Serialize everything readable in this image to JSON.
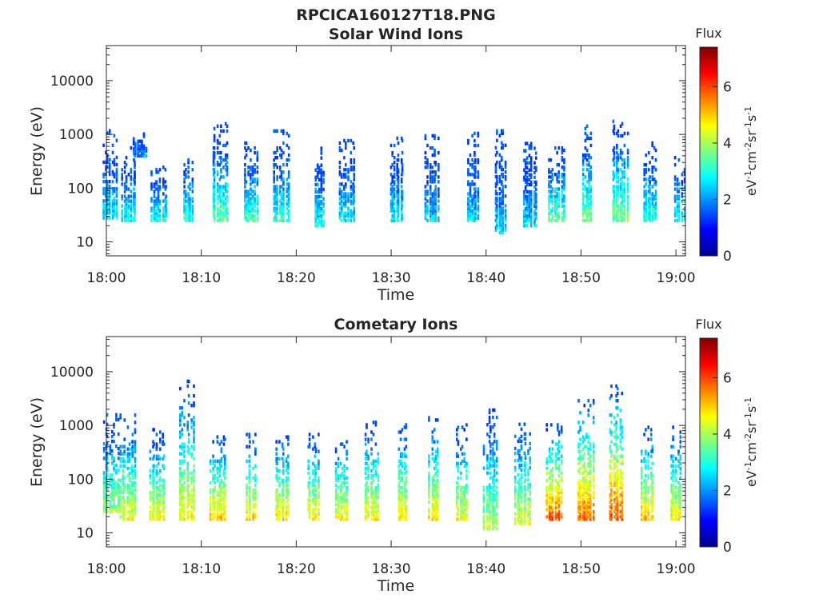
{
  "figure_title": "RPCICA160127T18.PNG",
  "chart_data": [
    {
      "type": "heatmap",
      "title": "Solar Wind Ions",
      "xlabel": "Time",
      "ylabel": "Energy (eV)",
      "x_ticks": [
        "18:00",
        "18:10",
        "18:20",
        "18:30",
        "18:40",
        "18:50",
        "19:00"
      ],
      "xlim": [
        "18:00",
        "19:01"
      ],
      "y_scale": "log",
      "ylim": [
        5.5,
        45000
      ],
      "y_ticks": [
        10,
        100,
        1000,
        10000
      ],
      "y_tick_labels": [
        "10",
        "100",
        "1000",
        "10000"
      ],
      "colorbar": {
        "label": "Flux",
        "units": "eV-1cm-2sr-1s-1",
        "range": [
          0,
          7.4
        ],
        "ticks": [
          0,
          2,
          4,
          6
        ]
      },
      "bursts": [
        {
          "t": "18:00.4",
          "e_low": 28,
          "e_high": 1200,
          "peak_flux": 3.2
        },
        {
          "t": "18:02.4",
          "e_low": 25,
          "e_high": 600,
          "peak_flux": 3.4
        },
        {
          "t": "18:03.5",
          "e_low": 400,
          "e_high": 1100,
          "peak_flux": 2.3
        },
        {
          "t": "18:05.6",
          "e_low": 25,
          "e_high": 300,
          "peak_flux": 3.4
        },
        {
          "t": "18:08.6",
          "e_low": 25,
          "e_high": 400,
          "peak_flux": 3.6
        },
        {
          "t": "18:12.0",
          "e_low": 25,
          "e_high": 1600,
          "peak_flux": 4.0
        },
        {
          "t": "18:15.2",
          "e_low": 25,
          "e_high": 700,
          "peak_flux": 3.8
        },
        {
          "t": "18:18.4",
          "e_low": 25,
          "e_high": 1300,
          "peak_flux": 3.6
        },
        {
          "t": "18:22.5",
          "e_low": 20,
          "e_high": 700,
          "peak_flux": 3.4
        },
        {
          "t": "18:25.4",
          "e_low": 25,
          "e_high": 800,
          "peak_flux": 3.2
        },
        {
          "t": "18:30.6",
          "e_low": 25,
          "e_high": 900,
          "peak_flux": 3.2
        },
        {
          "t": "18:34.3",
          "e_low": 25,
          "e_high": 1000,
          "peak_flux": 3.0
        },
        {
          "t": "18:38.6",
          "e_low": 25,
          "e_high": 1100,
          "peak_flux": 3.0
        },
        {
          "t": "18:41.5",
          "e_low": 15,
          "e_high": 1200,
          "peak_flux": 3.0
        },
        {
          "t": "18:44.6",
          "e_low": 20,
          "e_high": 1100,
          "peak_flux": 3.0
        },
        {
          "t": "18:47.4",
          "e_low": 25,
          "e_high": 600,
          "peak_flux": 4.0
        },
        {
          "t": "18:50.6",
          "e_low": 25,
          "e_high": 1500,
          "peak_flux": 4.2
        },
        {
          "t": "18:54.1",
          "e_low": 25,
          "e_high": 1900,
          "peak_flux": 4.2
        },
        {
          "t": "18:57.3",
          "e_low": 25,
          "e_high": 700,
          "peak_flux": 3.6
        },
        {
          "t": "19:00.4",
          "e_low": 25,
          "e_high": 500,
          "peak_flux": 3.4
        }
      ]
    },
    {
      "type": "heatmap",
      "title": "Cometary Ions",
      "xlabel": "Time",
      "ylabel": "Energy (eV)",
      "x_ticks": [
        "18:00",
        "18:10",
        "18:20",
        "18:30",
        "18:40",
        "18:50",
        "19:00"
      ],
      "xlim": [
        "18:00",
        "19:01"
      ],
      "y_scale": "log",
      "ylim": [
        5.5,
        45000
      ],
      "y_ticks": [
        10,
        100,
        1000,
        10000
      ],
      "y_tick_labels": [
        "10",
        "100",
        "1000",
        "10000"
      ],
      "colorbar": {
        "label": "Flux",
        "units": "eV-1cm-2sr-1s-1",
        "range": [
          0,
          7.4
        ],
        "ticks": [
          0,
          2,
          4,
          6
        ]
      },
      "bursts": [
        {
          "t": "18:00.5",
          "e_low": 25,
          "e_high": 1700,
          "peak_flux": 4.4
        },
        {
          "t": "18:02.3",
          "e_low": 18,
          "e_high": 1600,
          "peak_flux": 5.0
        },
        {
          "t": "18:05.4",
          "e_low": 18,
          "e_high": 900,
          "peak_flux": 5.2
        },
        {
          "t": "18:08.5",
          "e_low": 18,
          "e_high": 7000,
          "peak_flux": 5.2
        },
        {
          "t": "18:11.8",
          "e_low": 18,
          "e_high": 700,
          "peak_flux": 5.6
        },
        {
          "t": "18:15.2",
          "e_low": 18,
          "e_high": 700,
          "peak_flux": 5.4
        },
        {
          "t": "18:18.5",
          "e_low": 18,
          "e_high": 700,
          "peak_flux": 5.4
        },
        {
          "t": "18:21.8",
          "e_low": 18,
          "e_high": 700,
          "peak_flux": 5.4
        },
        {
          "t": "18:24.8",
          "e_low": 18,
          "e_high": 600,
          "peak_flux": 5.2
        },
        {
          "t": "18:27.9",
          "e_low": 18,
          "e_high": 1200,
          "peak_flux": 5.2
        },
        {
          "t": "18:31.2",
          "e_low": 18,
          "e_high": 1100,
          "peak_flux": 5.4
        },
        {
          "t": "18:34.5",
          "e_low": 18,
          "e_high": 1400,
          "peak_flux": 5.4
        },
        {
          "t": "18:37.4",
          "e_low": 18,
          "e_high": 1100,
          "peak_flux": 5.0
        },
        {
          "t": "18:40.5",
          "e_low": 12,
          "e_high": 2500,
          "peak_flux": 4.6
        },
        {
          "t": "18:43.9",
          "e_low": 15,
          "e_high": 1200,
          "peak_flux": 5.0
        },
        {
          "t": "18:47.2",
          "e_low": 18,
          "e_high": 1100,
          "peak_flux": 6.4
        },
        {
          "t": "18:50.5",
          "e_low": 18,
          "e_high": 3000,
          "peak_flux": 6.2
        },
        {
          "t": "18:53.7",
          "e_low": 18,
          "e_high": 6000,
          "peak_flux": 6.4
        },
        {
          "t": "18:57.0",
          "e_low": 18,
          "e_high": 1000,
          "peak_flux": 5.6
        },
        {
          "t": "19:00.0",
          "e_low": 18,
          "e_high": 1000,
          "peak_flux": 5.2
        }
      ]
    }
  ]
}
